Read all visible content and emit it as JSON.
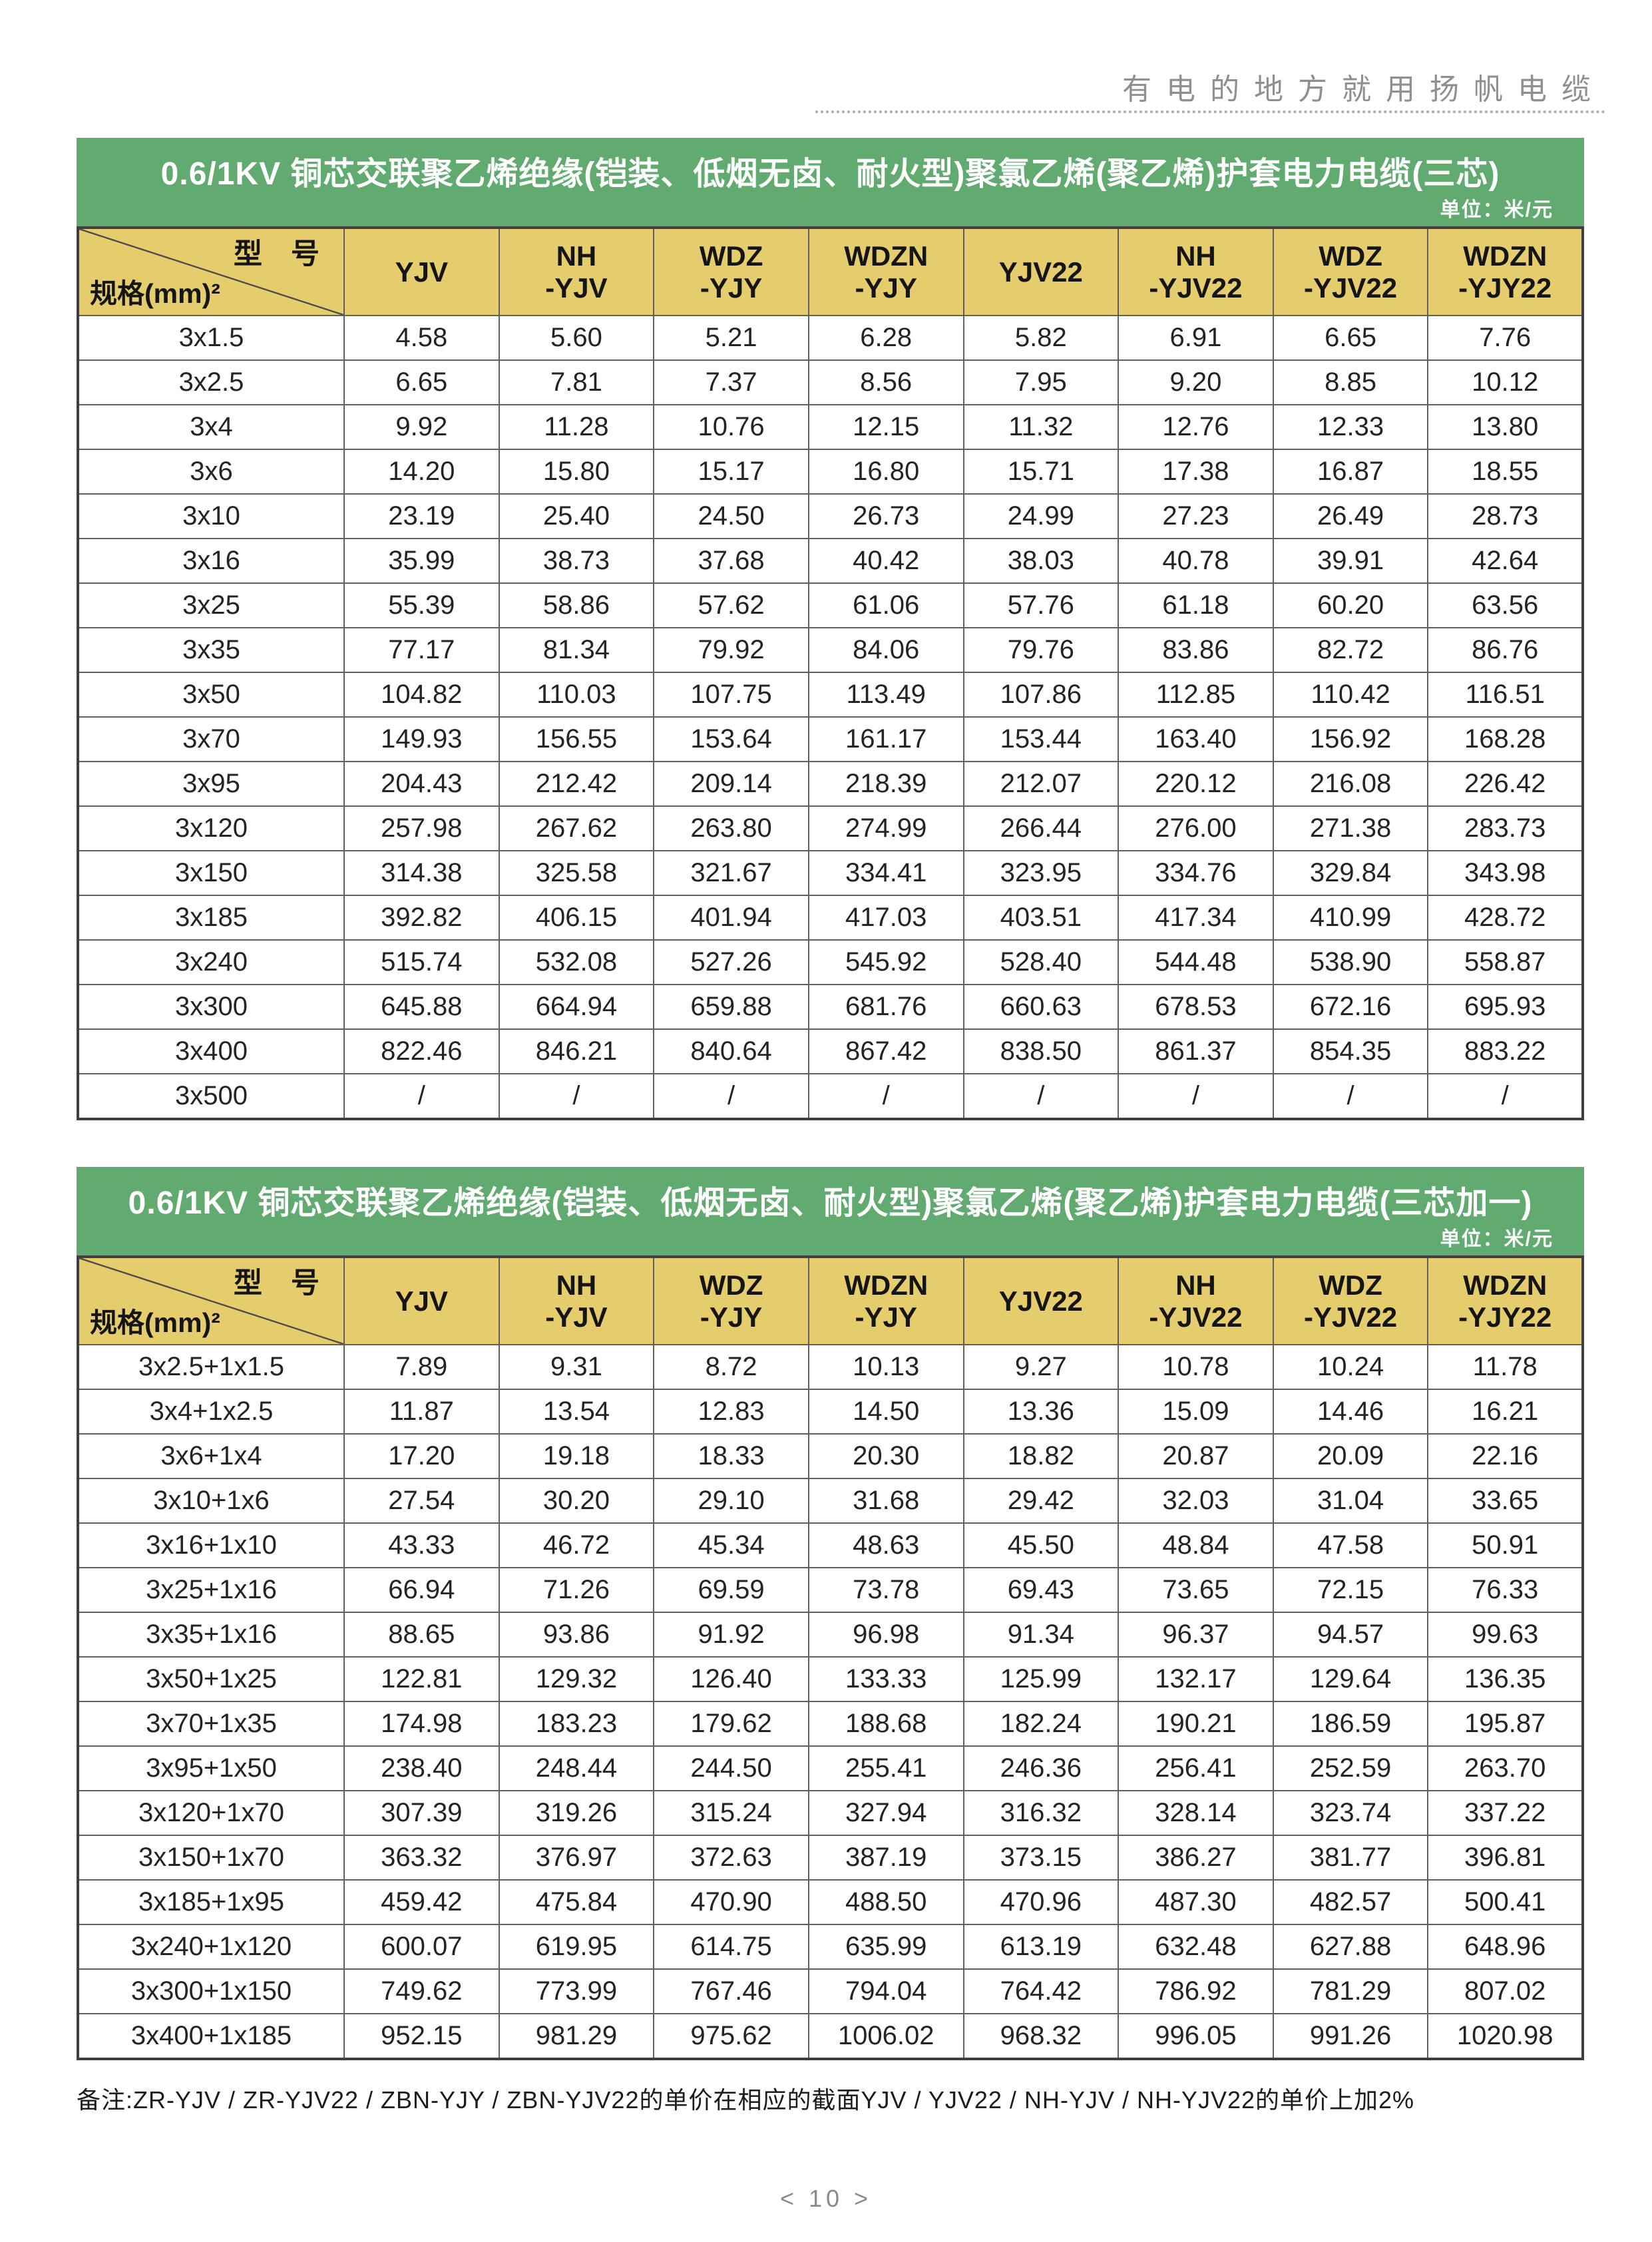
{
  "header": {
    "slogan": "有电的地方就用扬帆电缆"
  },
  "colors": {
    "header_green": "#61ab70",
    "header_yellow": "#e5cd6e"
  },
  "tables": [
    {
      "title": "0.6/1KV 铜芯交联聚乙烯绝缘(铠装、低烟无卤、耐火型)聚氯乙烯(聚乙烯)护套电力电缆(三芯)",
      "unit": "单位：米/元",
      "corner_top": "型　号",
      "corner_bottom": "规格(mm)²",
      "columns": [
        "YJV",
        "NH\n-YJV",
        "WDZ\n-YJY",
        "WDZN\n-YJY",
        "YJV22",
        "NH\n-YJV22",
        "WDZ\n-YJV22",
        "WDZN\n-YJY22"
      ],
      "rows": [
        {
          "spec": "3x1.5",
          "values": [
            "4.58",
            "5.60",
            "5.21",
            "6.28",
            "5.82",
            "6.91",
            "6.65",
            "7.76"
          ]
        },
        {
          "spec": "3x2.5",
          "values": [
            "6.65",
            "7.81",
            "7.37",
            "8.56",
            "7.95",
            "9.20",
            "8.85",
            "10.12"
          ]
        },
        {
          "spec": "3x4",
          "values": [
            "9.92",
            "11.28",
            "10.76",
            "12.15",
            "11.32",
            "12.76",
            "12.33",
            "13.80"
          ]
        },
        {
          "spec": "3x6",
          "values": [
            "14.20",
            "15.80",
            "15.17",
            "16.80",
            "15.71",
            "17.38",
            "16.87",
            "18.55"
          ]
        },
        {
          "spec": "3x10",
          "values": [
            "23.19",
            "25.40",
            "24.50",
            "26.73",
            "24.99",
            "27.23",
            "26.49",
            "28.73"
          ]
        },
        {
          "spec": "3x16",
          "values": [
            "35.99",
            "38.73",
            "37.68",
            "40.42",
            "38.03",
            "40.78",
            "39.91",
            "42.64"
          ]
        },
        {
          "spec": "3x25",
          "values": [
            "55.39",
            "58.86",
            "57.62",
            "61.06",
            "57.76",
            "61.18",
            "60.20",
            "63.56"
          ]
        },
        {
          "spec": "3x35",
          "values": [
            "77.17",
            "81.34",
            "79.92",
            "84.06",
            "79.76",
            "83.86",
            "82.72",
            "86.76"
          ]
        },
        {
          "spec": "3x50",
          "values": [
            "104.82",
            "110.03",
            "107.75",
            "113.49",
            "107.86",
            "112.85",
            "110.42",
            "116.51"
          ]
        },
        {
          "spec": "3x70",
          "values": [
            "149.93",
            "156.55",
            "153.64",
            "161.17",
            "153.44",
            "163.40",
            "156.92",
            "168.28"
          ]
        },
        {
          "spec": "3x95",
          "values": [
            "204.43",
            "212.42",
            "209.14",
            "218.39",
            "212.07",
            "220.12",
            "216.08",
            "226.42"
          ]
        },
        {
          "spec": "3x120",
          "values": [
            "257.98",
            "267.62",
            "263.80",
            "274.99",
            "266.44",
            "276.00",
            "271.38",
            "283.73"
          ]
        },
        {
          "spec": "3x150",
          "values": [
            "314.38",
            "325.58",
            "321.67",
            "334.41",
            "323.95",
            "334.76",
            "329.84",
            "343.98"
          ]
        },
        {
          "spec": "3x185",
          "values": [
            "392.82",
            "406.15",
            "401.94",
            "417.03",
            "403.51",
            "417.34",
            "410.99",
            "428.72"
          ]
        },
        {
          "spec": "3x240",
          "values": [
            "515.74",
            "532.08",
            "527.26",
            "545.92",
            "528.40",
            "544.48",
            "538.90",
            "558.87"
          ]
        },
        {
          "spec": "3x300",
          "values": [
            "645.88",
            "664.94",
            "659.88",
            "681.76",
            "660.63",
            "678.53",
            "672.16",
            "695.93"
          ]
        },
        {
          "spec": "3x400",
          "values": [
            "822.46",
            "846.21",
            "840.64",
            "867.42",
            "838.50",
            "861.37",
            "854.35",
            "883.22"
          ]
        },
        {
          "spec": "3x500",
          "values": [
            "/",
            "/",
            "/",
            "/",
            "/",
            "/",
            "/",
            "/"
          ]
        }
      ]
    },
    {
      "title": "0.6/1KV 铜芯交联聚乙烯绝缘(铠装、低烟无卤、耐火型)聚氯乙烯(聚乙烯)护套电力电缆(三芯加一)",
      "unit": "单位：米/元",
      "corner_top": "型　号",
      "corner_bottom": "规格(mm)²",
      "columns": [
        "YJV",
        "NH\n-YJV",
        "WDZ\n-YJY",
        "WDZN\n-YJY",
        "YJV22",
        "NH\n-YJV22",
        "WDZ\n-YJV22",
        "WDZN\n-YJY22"
      ],
      "rows": [
        {
          "spec": "3x2.5+1x1.5",
          "values": [
            "7.89",
            "9.31",
            "8.72",
            "10.13",
            "9.27",
            "10.78",
            "10.24",
            "11.78"
          ]
        },
        {
          "spec": "3x4+1x2.5",
          "values": [
            "11.87",
            "13.54",
            "12.83",
            "14.50",
            "13.36",
            "15.09",
            "14.46",
            "16.21"
          ]
        },
        {
          "spec": "3x6+1x4",
          "values": [
            "17.20",
            "19.18",
            "18.33",
            "20.30",
            "18.82",
            "20.87",
            "20.09",
            "22.16"
          ]
        },
        {
          "spec": "3x10+1x6",
          "values": [
            "27.54",
            "30.20",
            "29.10",
            "31.68",
            "29.42",
            "32.03",
            "31.04",
            "33.65"
          ]
        },
        {
          "spec": "3x16+1x10",
          "values": [
            "43.33",
            "46.72",
            "45.34",
            "48.63",
            "45.50",
            "48.84",
            "47.58",
            "50.91"
          ]
        },
        {
          "spec": "3x25+1x16",
          "values": [
            "66.94",
            "71.26",
            "69.59",
            "73.78",
            "69.43",
            "73.65",
            "72.15",
            "76.33"
          ]
        },
        {
          "spec": "3x35+1x16",
          "values": [
            "88.65",
            "93.86",
            "91.92",
            "96.98",
            "91.34",
            "96.37",
            "94.57",
            "99.63"
          ]
        },
        {
          "spec": "3x50+1x25",
          "values": [
            "122.81",
            "129.32",
            "126.40",
            "133.33",
            "125.99",
            "132.17",
            "129.64",
            "136.35"
          ]
        },
        {
          "spec": "3x70+1x35",
          "values": [
            "174.98",
            "183.23",
            "179.62",
            "188.68",
            "182.24",
            "190.21",
            "186.59",
            "195.87"
          ]
        },
        {
          "spec": "3x95+1x50",
          "values": [
            "238.40",
            "248.44",
            "244.50",
            "255.41",
            "246.36",
            "256.41",
            "252.59",
            "263.70"
          ]
        },
        {
          "spec": "3x120+1x70",
          "values": [
            "307.39",
            "319.26",
            "315.24",
            "327.94",
            "316.32",
            "328.14",
            "323.74",
            "337.22"
          ]
        },
        {
          "spec": "3x150+1x70",
          "values": [
            "363.32",
            "376.97",
            "372.63",
            "387.19",
            "373.15",
            "386.27",
            "381.77",
            "396.81"
          ]
        },
        {
          "spec": "3x185+1x95",
          "values": [
            "459.42",
            "475.84",
            "470.90",
            "488.50",
            "470.96",
            "487.30",
            "482.57",
            "500.41"
          ]
        },
        {
          "spec": "3x240+1x120",
          "values": [
            "600.07",
            "619.95",
            "614.75",
            "635.99",
            "613.19",
            "632.48",
            "627.88",
            "648.96"
          ]
        },
        {
          "spec": "3x300+1x150",
          "values": [
            "749.62",
            "773.99",
            "767.46",
            "794.04",
            "764.42",
            "786.92",
            "781.29",
            "807.02"
          ]
        },
        {
          "spec": "3x400+1x185",
          "values": [
            "952.15",
            "981.29",
            "975.62",
            "1006.02",
            "968.32",
            "996.05",
            "991.26",
            "1020.98"
          ]
        }
      ]
    }
  ],
  "footer": {
    "note": "备注:ZR-YJV / ZR-YJV22 / ZBN-YJY / ZBN-YJV22的单价在相应的截面YJV / YJV22 / NH-YJV / NH-YJV22的单价上加2%",
    "page_number": "< 10 >"
  }
}
